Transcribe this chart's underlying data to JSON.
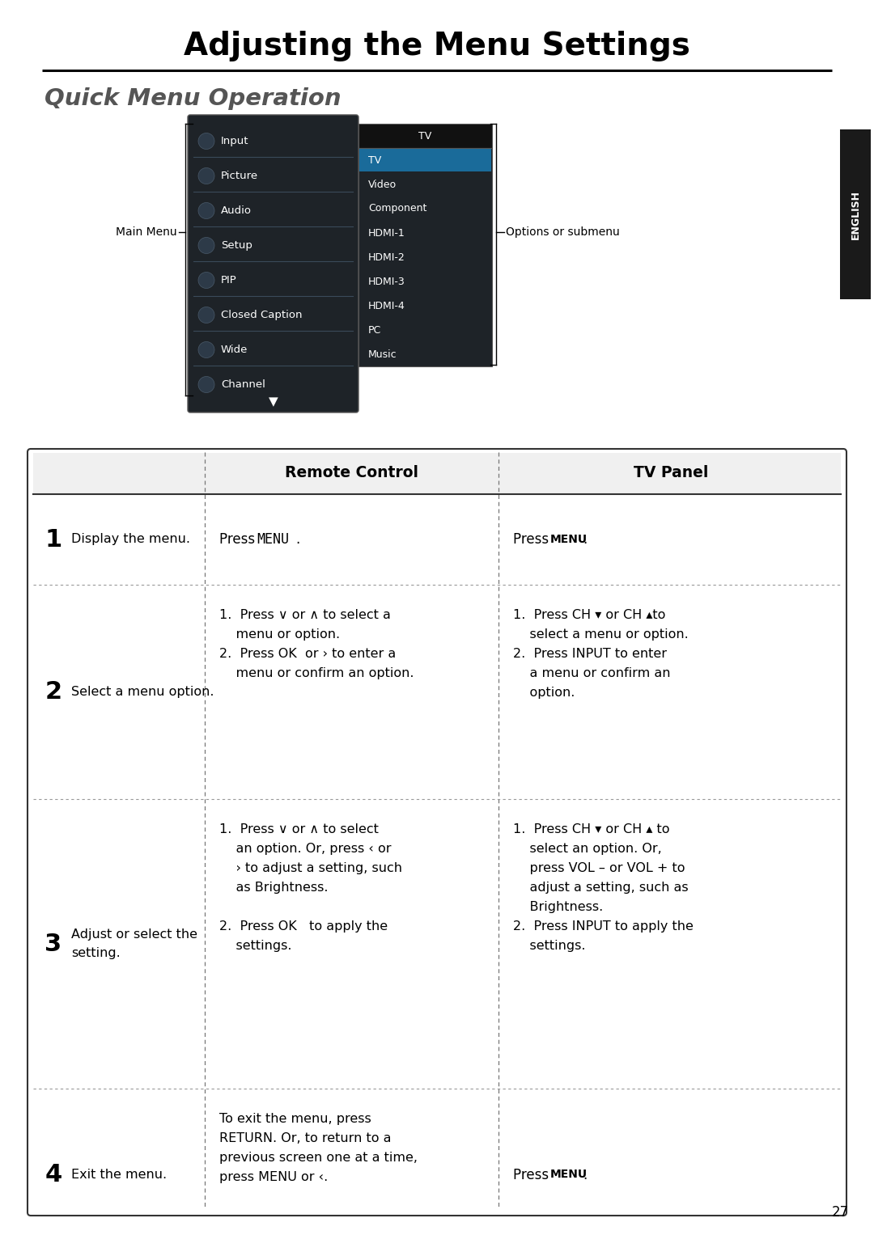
{
  "title": "Adjusting the Menu Settings",
  "subtitle": "Quick Menu Operation",
  "page_number": "27",
  "sidebar_text": "ENGLISH",
  "sidebar_color": "#1a1a1a",
  "menu_items": [
    "Input",
    "Picture",
    "Audio",
    "Setup",
    "PIP",
    "Closed Caption",
    "Wide",
    "Channel"
  ],
  "submenu_items": [
    "TV",
    "Video",
    "Component",
    "HDMI-1",
    "HDMI-2",
    "HDMI-3",
    "HDMI-4",
    "PC",
    "Music"
  ],
  "annotation_main_menu": "Main Menu",
  "annotation_submenu": "Options or submenu",
  "table_col1_header": "Remote Control",
  "table_col2_header": "TV Panel",
  "bg_color": "#ffffff",
  "text_color": "#000000",
  "menu_bg": "#1e2328",
  "submenu_bg": "#1e2328",
  "selected_bg": "#1a6b9a",
  "row_data": [
    {
      "num": "1",
      "desc": "Display the menu.",
      "remote_multiline": "",
      "panel_multiline": ""
    },
    {
      "num": "2",
      "desc": "Select a menu option.",
      "remote_multiline": "1.  Press ∨ or ∧ to select a\n    menu or option.\n2.  Press OK  or › to enter a\n    menu or confirm an option.",
      "panel_multiline": "1.  Press CH ▾ or CH ▴to\n    select a menu or option.\n2.  Press INPUT to enter\n    a menu or confirm an\n    option."
    },
    {
      "num": "3",
      "desc": "Adjust or select the\nsetting.",
      "remote_multiline": "1.  Press ∨ or ∧ to select\n    an option. Or, press ‹ or\n    › to adjust a setting, such\n    as Brightness.\n\n2.  Press OK   to apply the\n    settings.",
      "panel_multiline": "1.  Press CH ▾ or CH ▴ to\n    select an option. Or,\n    press VOL – or VOL + to\n    adjust a setting, such as\n    Brightness.\n2.  Press INPUT to apply the\n    settings."
    },
    {
      "num": "4",
      "desc": "Exit the menu.",
      "remote_multiline": "To exit the menu, press\nRETURN. Or, to return to a\nprevious screen one at a time,\npress MENU or ‹.",
      "panel_multiline": ""
    }
  ]
}
